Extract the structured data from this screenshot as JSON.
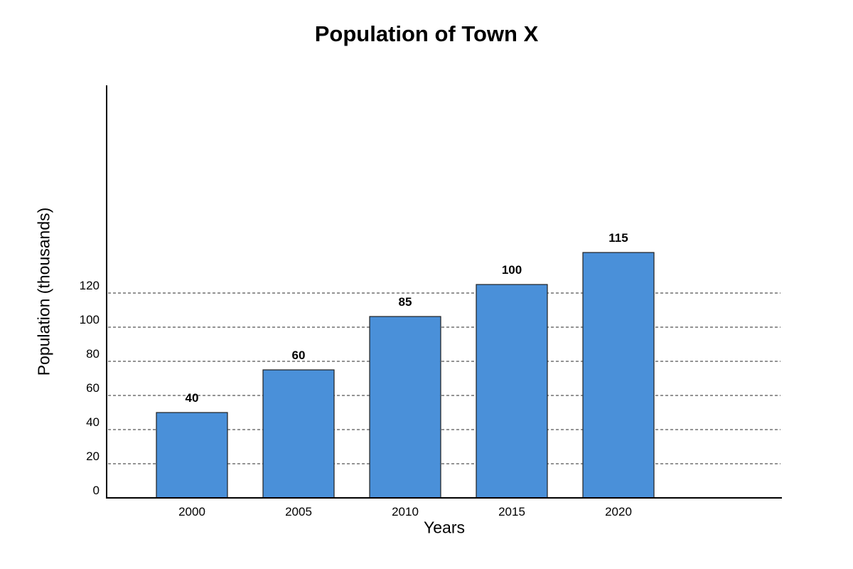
{
  "chart_data": {
    "type": "bar",
    "title": "Population of Town X",
    "xlabel": "Years",
    "ylabel": "Population (thousands)",
    "categories": [
      "2000",
      "2005",
      "2010",
      "2015",
      "2020"
    ],
    "values": [
      40,
      60,
      85,
      100,
      115
    ],
    "y_ticks": [
      0,
      20,
      40,
      60,
      80,
      100,
      120
    ],
    "ylim": [
      0,
      240
    ],
    "grid": "horizontal dashed",
    "legend": "none",
    "bar_color": "#4a90d9",
    "bar_edge_color": "#1f1f1f"
  }
}
